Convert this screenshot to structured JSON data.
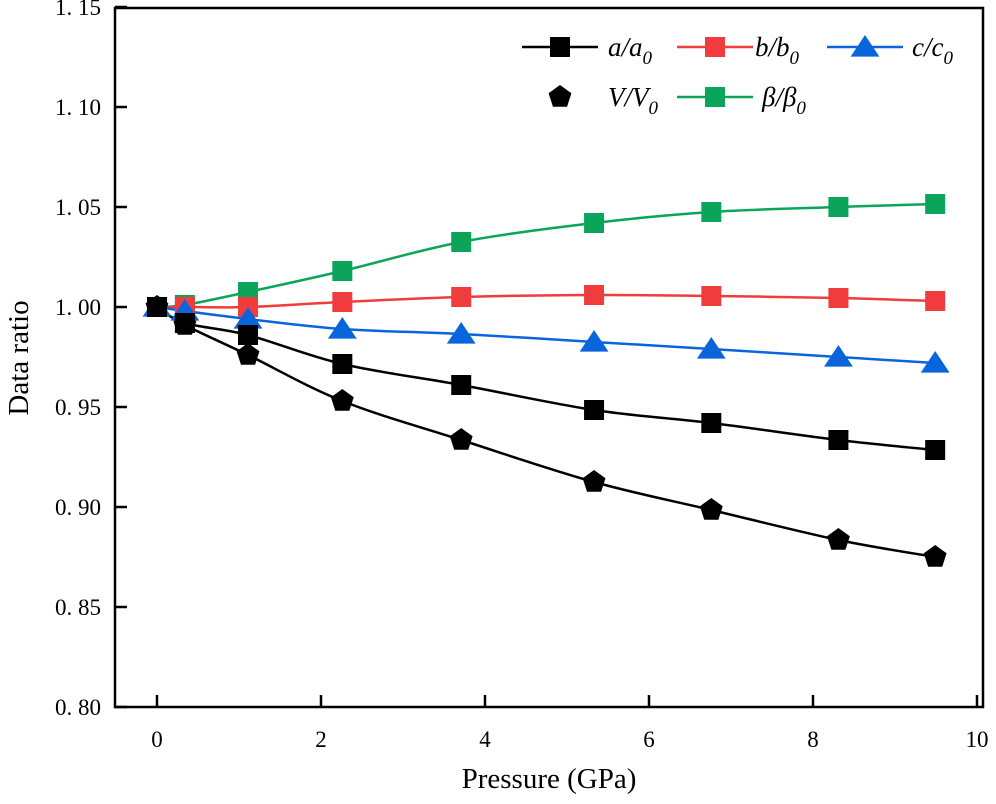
{
  "chart_data": {
    "type": "line",
    "title": "",
    "xlabel": "Pressure (GPa)",
    "ylabel": "Data ratio",
    "xlim": [
      -0.5,
      10
    ],
    "ylim": [
      0.8,
      1.15
    ],
    "xticks": [
      "0",
      "2",
      "4",
      "6",
      "8",
      "10"
    ],
    "xtick_values": [
      0,
      2,
      4,
      6,
      8,
      10
    ],
    "yticks": [
      "0.80",
      "0.85",
      "0.90",
      "0.95",
      "1.00",
      "1.05",
      "1.10",
      "1.15"
    ],
    "ytick_values": [
      0.8,
      0.85,
      0.9,
      0.95,
      1.0,
      1.05,
      1.1,
      1.15
    ],
    "grid": false,
    "legend_position": "top-right",
    "x": [
      0,
      0.34,
      1.11,
      2.26,
      3.71,
      5.33,
      6.76,
      8.31,
      9.49
    ],
    "series": [
      {
        "name": "a/a0",
        "label_main": "a/a",
        "label_sub": "0",
        "color": "#000000",
        "marker": "square",
        "line": true,
        "values": [
          1.0,
          0.992,
          0.986,
          0.9715,
          0.961,
          0.9485,
          0.942,
          0.9335,
          0.9285
        ]
      },
      {
        "name": "b/b0",
        "label_main": "b/b",
        "label_sub": "0",
        "color": "#f03c3c",
        "marker": "square",
        "line": true,
        "values": [
          1.0,
          1.0,
          1.0,
          1.0025,
          1.005,
          1.006,
          1.0055,
          1.0045,
          1.003
        ]
      },
      {
        "name": "c/c0",
        "label_main": "c/c",
        "label_sub": "0",
        "color": "#0a64dc",
        "marker": "triangle",
        "line": true,
        "values": [
          1.0,
          0.998,
          0.994,
          0.989,
          0.9865,
          0.9825,
          0.979,
          0.975,
          0.972
        ]
      },
      {
        "name": "V/V0",
        "label_main": "V/V",
        "label_sub": "0",
        "color": "#000000",
        "marker": "pentagon",
        "line": true,
        "values": [
          1.0,
          0.991,
          0.976,
          0.953,
          0.9335,
          0.9125,
          0.8985,
          0.8835,
          0.875
        ]
      },
      {
        "name": "β/β0",
        "label_main": "β/β",
        "label_sub": "0",
        "color": "#0aa55a",
        "marker": "square",
        "line": true,
        "values": [
          1.0,
          1.001,
          1.0075,
          1.018,
          1.0325,
          1.042,
          1.0475,
          1.05,
          1.0515
        ]
      }
    ]
  }
}
